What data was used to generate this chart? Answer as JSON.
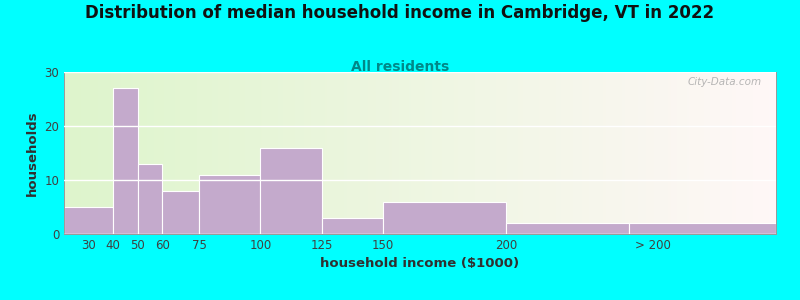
{
  "title": "Distribution of median household income in Cambridge, VT in 2022",
  "subtitle": "All residents",
  "xlabel": "household income ($1000)",
  "ylabel": "households",
  "background_outer": "#00FFFF",
  "bar_color": "#C4AACC",
  "bar_edge_color": "#FFFFFF",
  "bin_edges": [
    20,
    40,
    50,
    60,
    75,
    100,
    125,
    150,
    200,
    250,
    310
  ],
  "values": [
    5,
    27,
    13,
    8,
    11,
    16,
    3,
    6,
    2,
    2
  ],
  "xtick_positions": [
    30,
    40,
    50,
    60,
    75,
    100,
    125,
    150,
    200,
    260
  ],
  "xtick_labels": [
    "30",
    "40",
    "50",
    "60",
    "75",
    "100",
    "125",
    "150",
    "200",
    "> 200"
  ],
  "ylim": [
    0,
    30
  ],
  "yticks": [
    0,
    10,
    20,
    30
  ],
  "xlim": [
    20,
    310
  ],
  "title_fontsize": 12,
  "subtitle_fontsize": 10,
  "axis_label_fontsize": 9.5,
  "tick_fontsize": 8.5,
  "watermark": "City-Data.com"
}
